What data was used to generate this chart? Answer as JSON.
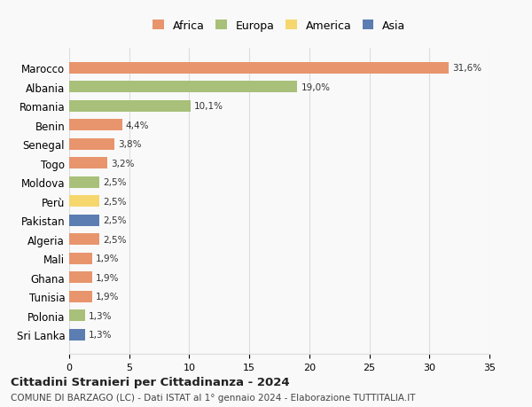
{
  "categories": [
    "Sri Lanka",
    "Polonia",
    "Tunisia",
    "Ghana",
    "Mali",
    "Algeria",
    "Pakistan",
    "Perù",
    "Moldova",
    "Togo",
    "Senegal",
    "Benin",
    "Romania",
    "Albania",
    "Marocco"
  ],
  "values": [
    1.3,
    1.3,
    1.9,
    1.9,
    1.9,
    2.5,
    2.5,
    2.5,
    2.5,
    3.2,
    3.8,
    4.4,
    10.1,
    19.0,
    31.6
  ],
  "labels": [
    "1,3%",
    "1,3%",
    "1,9%",
    "1,9%",
    "1,9%",
    "2,5%",
    "2,5%",
    "2,5%",
    "2,5%",
    "3,2%",
    "3,8%",
    "4,4%",
    "10,1%",
    "19,0%",
    "31,6%"
  ],
  "colors": [
    "#5b7db1",
    "#a8c07a",
    "#e8956d",
    "#e8956d",
    "#e8956d",
    "#e8956d",
    "#5b7db1",
    "#f5d76e",
    "#a8c07a",
    "#e8956d",
    "#e8956d",
    "#e8956d",
    "#a8c07a",
    "#a8c07a",
    "#e8956d"
  ],
  "legend_labels": [
    "Africa",
    "Europa",
    "America",
    "Asia"
  ],
  "legend_colors": [
    "#e8956d",
    "#a8c07a",
    "#f5d76e",
    "#5b7db1"
  ],
  "title": "Cittadini Stranieri per Cittadinanza - 2024",
  "subtitle": "COMUNE DI BARZAGO (LC) - Dati ISTAT al 1° gennaio 2024 - Elaborazione TUTTITALIA.IT",
  "xlim": [
    0,
    35
  ],
  "xticks": [
    0,
    5,
    10,
    15,
    20,
    25,
    30,
    35
  ],
  "bg_color": "#f9f9f9",
  "grid_color": "#dddddd"
}
